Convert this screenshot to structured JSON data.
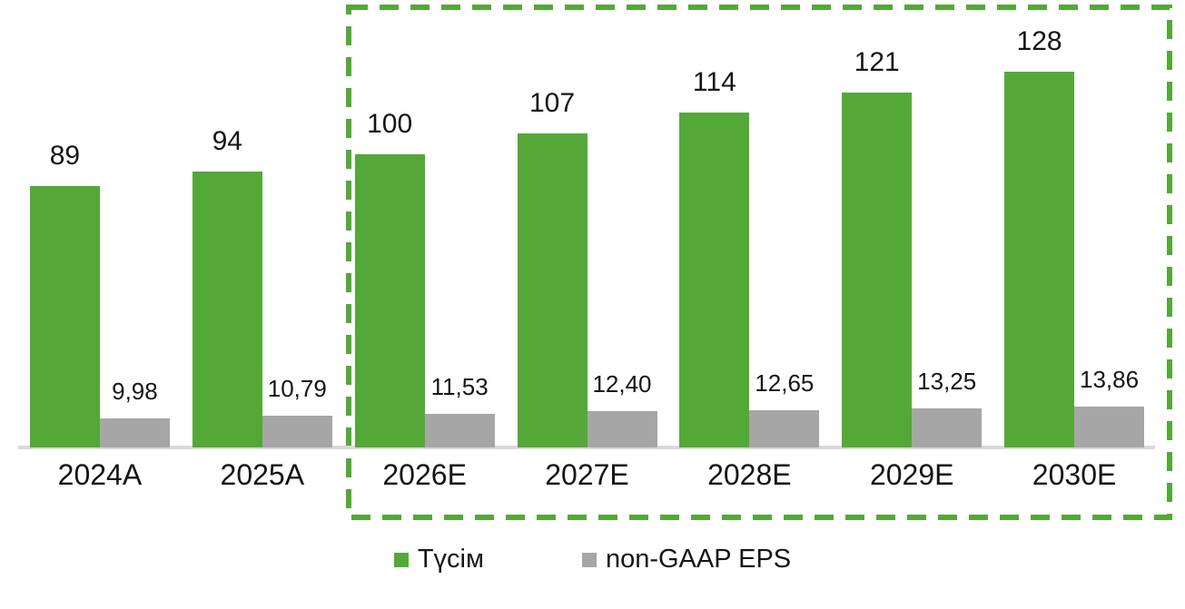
{
  "chart_data": {
    "type": "bar",
    "categories": [
      "2024A",
      "2025A",
      "2026E",
      "2027E",
      "2028E",
      "2029E",
      "2030E"
    ],
    "series": [
      {
        "name": "Түсім",
        "color": "#54A838",
        "values": [
          89,
          94,
          100,
          107,
          114,
          121,
          128
        ],
        "labels": [
          "89",
          "94",
          "100",
          "107",
          "114",
          "121",
          "128"
        ]
      },
      {
        "name": "non-GAAP EPS",
        "color": "#A6A6A6",
        "values": [
          9.98,
          10.79,
          11.53,
          12.4,
          12.65,
          13.25,
          13.86
        ],
        "labels": [
          "9,98",
          "10,79",
          "11,53",
          "12,40",
          "12,65",
          "13,25",
          "13,86"
        ]
      }
    ],
    "title": "",
    "xlabel": "",
    "ylabel": "",
    "grid": false,
    "y_axis_visible": false,
    "legend_position": "bottom",
    "data_labels": "above bars",
    "annotations": {
      "forecast_box": {
        "style": "green dashed rectangle",
        "color": "#54A838",
        "categories_enclosed": [
          "2026E",
          "2027E",
          "2028E",
          "2029E",
          "2030E"
        ]
      }
    }
  },
  "colors": {
    "revenue_bar": "#54A838",
    "eps_bar": "#A6A6A6",
    "axis_line": "#D9D9D9",
    "text": "#151515",
    "background": "#FFFFFF",
    "forecast_box_border": "#54A838"
  },
  "legend": {
    "items": [
      {
        "label": "Түсім",
        "color": "#54A838"
      },
      {
        "label": "non-GAAP EPS",
        "color": "#A6A6A6"
      }
    ]
  }
}
